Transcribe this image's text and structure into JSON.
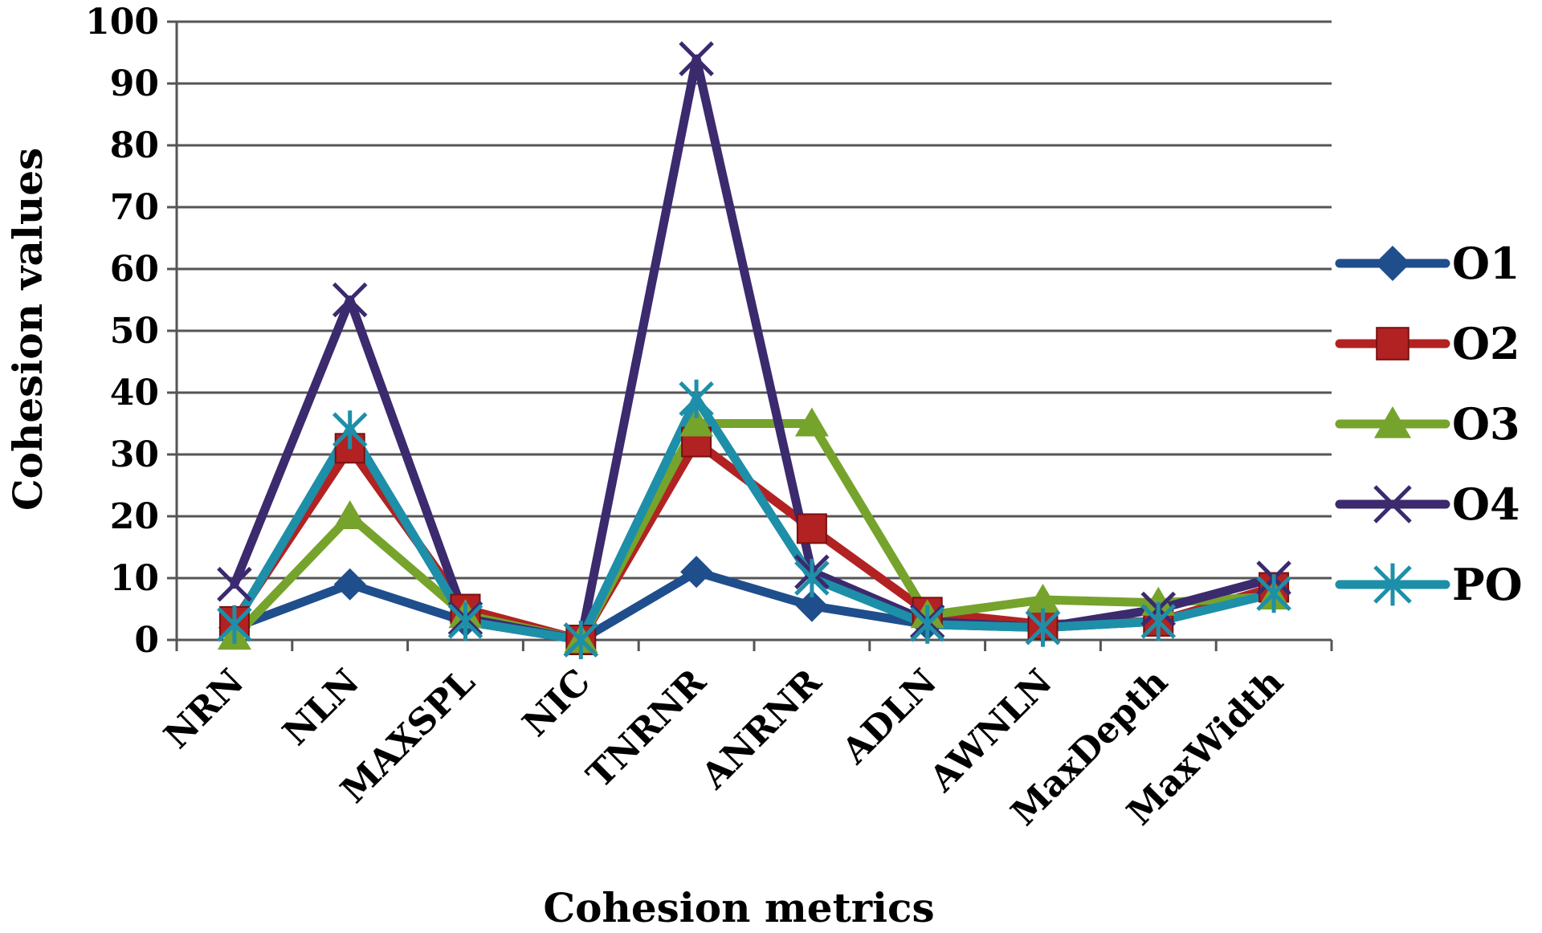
{
  "chart_data": {
    "type": "line",
    "title": "",
    "xlabel": "Cohesion metrics",
    "ylabel": "Cohesion values",
    "ylim": [
      0,
      100
    ],
    "yticks": [
      0,
      10,
      20,
      30,
      40,
      50,
      60,
      70,
      80,
      90,
      100
    ],
    "grid": true,
    "legend_position": "right",
    "categories": [
      "NRN",
      "NLN",
      "MAXSPL",
      "NIC",
      "TNRNR",
      "ANRNR",
      "ADLN",
      "AWNLN",
      "MaxDepth",
      "MaxWidth"
    ],
    "series": [
      {
        "name": "O1",
        "color": "#1f4e8c",
        "marker": "diamond",
        "values": [
          2,
          9,
          3,
          0,
          11,
          5.5,
          2.5,
          2,
          3,
          8
        ]
      },
      {
        "name": "O2",
        "color": "#b22222",
        "marker": "square",
        "values": [
          3,
          31,
          5,
          0,
          32,
          18,
          4.5,
          2.5,
          3,
          8.5
        ]
      },
      {
        "name": "O3",
        "color": "#76a32c",
        "marker": "triangle",
        "values": [
          0.5,
          20,
          4,
          0,
          35,
          35,
          4,
          6.5,
          6,
          7
        ]
      },
      {
        "name": "O4",
        "color": "#3b2a6e",
        "marker": "x",
        "values": [
          9,
          55,
          3.5,
          0,
          94,
          11,
          3,
          2,
          5,
          10
        ]
      },
      {
        "name": "PO",
        "color": "#1e8fa8",
        "marker": "star",
        "values": [
          2.5,
          34,
          3,
          0,
          39,
          10,
          2.5,
          2,
          3,
          7.5
        ]
      }
    ]
  }
}
